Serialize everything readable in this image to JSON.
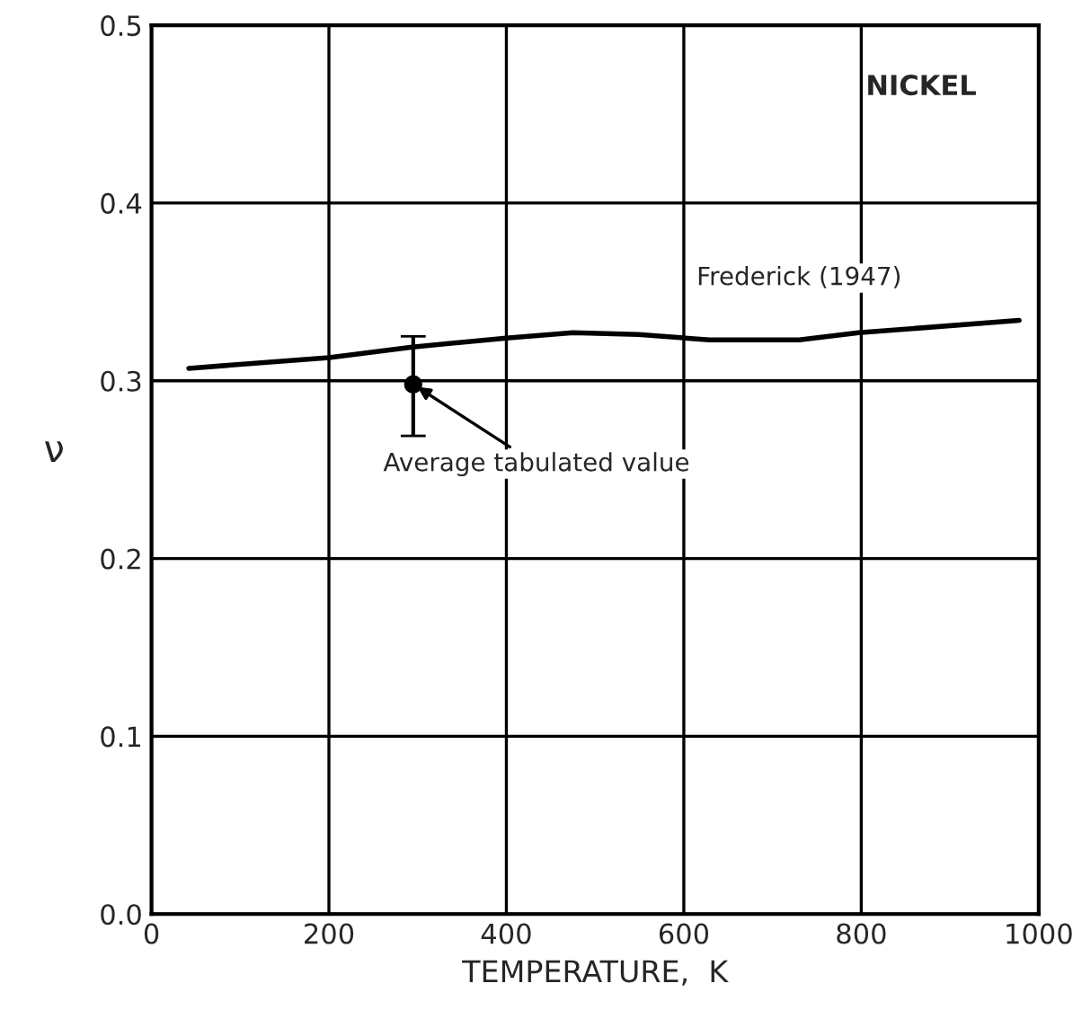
{
  "chart_data": {
    "type": "line",
    "xlabel": "TEMPERATURE,  K",
    "ylabel": "ν",
    "series": [
      {
        "name": "Frederick (1947)",
        "color": "#000000",
        "x": [
          42,
          200,
          294,
          400,
          475,
          549,
          629,
          730,
          797,
          978
        ],
        "values": [
          0.307,
          0.313,
          0.319,
          0.324,
          0.327,
          0.326,
          0.323,
          0.323,
          0.327,
          0.334
        ]
      },
      {
        "type": "scatter",
        "color": "#000000",
        "x": [
          295
        ],
        "values": [
          0.298
        ],
        "errors": [
          [
            0.269,
            0.325
          ]
        ]
      }
    ],
    "annotations": [
      "NICKEL",
      {
        "text": "Average tabulated value",
        "x": 295,
        "y": 0.298
      }
    ],
    "xlim": [
      0,
      1000
    ],
    "xticks": [
      0,
      200,
      400,
      600,
      800,
      1000
    ],
    "ylim": [
      0,
      0.5
    ],
    "yticks": [
      {
        "value": 0,
        "label": "0.0"
      },
      {
        "value": 0.1,
        "label": "0.1"
      },
      {
        "value": 0.2,
        "label": "0.2"
      },
      {
        "value": 0.3,
        "label": "0.3"
      },
      {
        "value": 0.4,
        "label": "0.4"
      },
      {
        "value": 0.5,
        "label": "0.5"
      }
    ],
    "grid": true
  }
}
